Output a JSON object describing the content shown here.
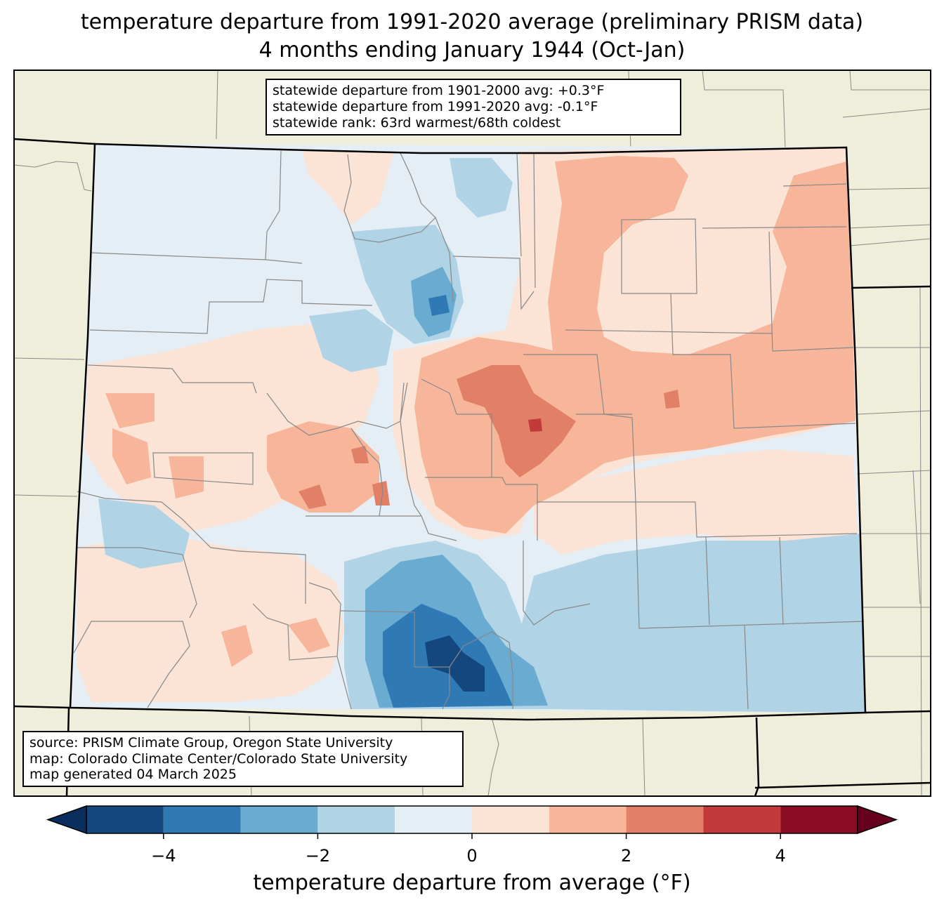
{
  "title_line1": "temperature departure from 1991-2020 average (preliminary PRISM data)",
  "title_line2": "4 months ending January 1944 (Oct-Jan)",
  "stats": [
    "statewide departure from 1901-2000 avg: +0.3°F",
    "statewide departure from 1991-2020 avg: -0.1°F",
    "statewide rank: 63rd warmest/68th coldest"
  ],
  "source": [
    "source: PRISM Climate Group, Oregon State University",
    "map: Colorado Climate Center/Colorado State University",
    "map generated 04 March 2025"
  ],
  "colorbar": {
    "label": "temperature departure from average (°F)",
    "min": -5,
    "max": 5,
    "step": 1,
    "ticks": [
      "−4",
      "−2",
      "0",
      "2",
      "4"
    ],
    "tick_values": [
      -4,
      -2,
      0,
      2,
      4
    ],
    "colors": [
      "#15477f",
      "#2f79b5",
      "#6aabd1",
      "#b0d4e6",
      "#e5eef4",
      "#fbe3d6",
      "#f7b69a",
      "#e27f67",
      "#c23b3a",
      "#890b24"
    ],
    "under_color": "#0a2f5e",
    "over_color": "#67001f"
  },
  "map_colors": {
    "background": "#efeedb",
    "state_fill": "#e5eef4",
    "state_border": "#000000",
    "county_border": "#888888"
  }
}
